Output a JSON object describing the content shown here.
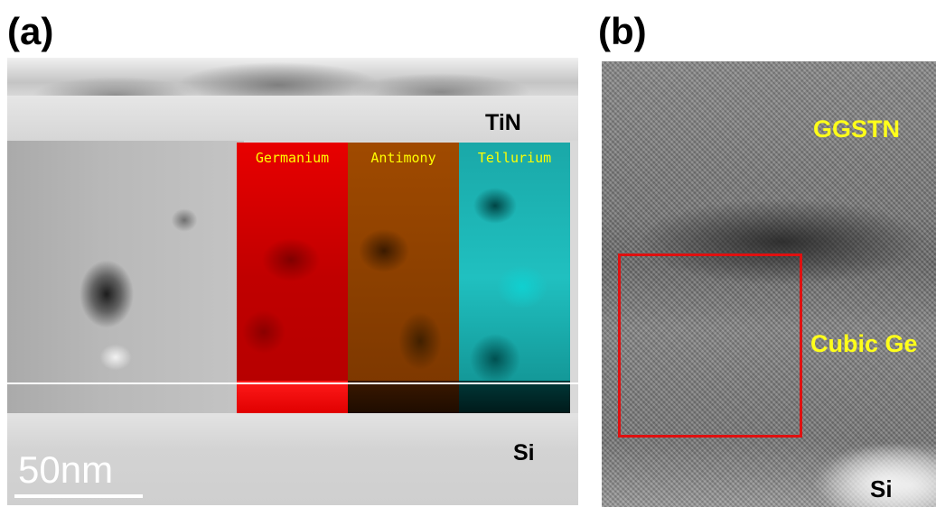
{
  "panel_a": {
    "label": "(a)",
    "layer_tin": "TiN",
    "layer_si": "Si",
    "scale_bar": "50nm",
    "maps": [
      {
        "label": "Germanium",
        "color": "#e00000"
      },
      {
        "label": "Antimony",
        "color": "#9a4800"
      },
      {
        "label": "Tellurium",
        "color": "#20c0c0"
      }
    ]
  },
  "panel_b": {
    "label": "(b)",
    "layer_top": "GGSTN",
    "layer_middle": "Cubic Ge",
    "layer_bottom": "Si",
    "box_color": "#e01010"
  }
}
